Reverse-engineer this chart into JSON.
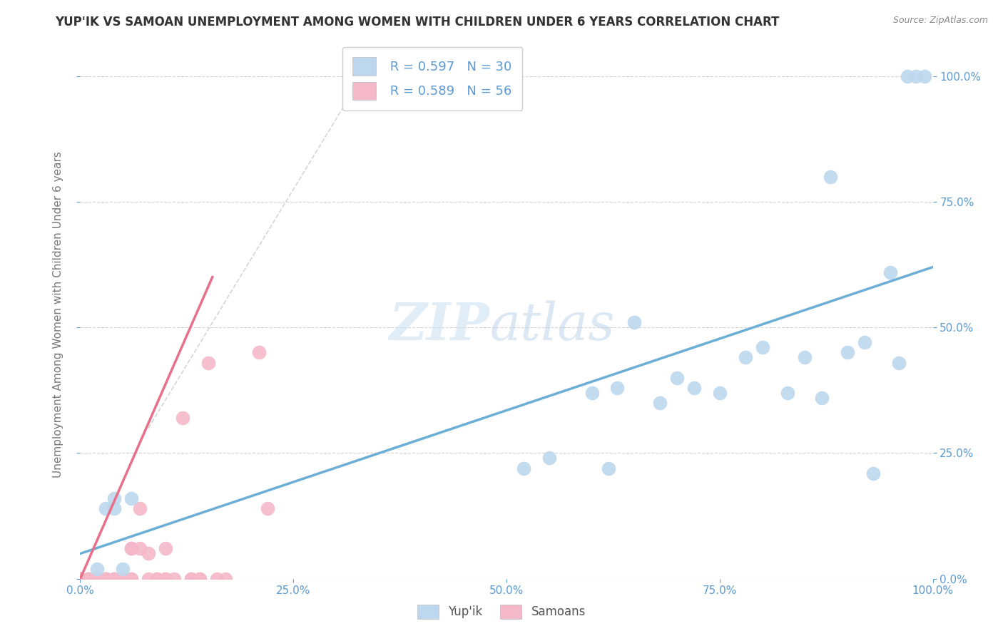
{
  "title": "YUP'IK VS SAMOAN UNEMPLOYMENT AMONG WOMEN WITH CHILDREN UNDER 6 YEARS CORRELATION CHART",
  "source": "Source: ZipAtlas.com",
  "ylabel": "Unemployment Among Women with Children Under 6 years",
  "watermark_zip": "ZIP",
  "watermark_atlas": "atlas",
  "legend_r_blue": "R = 0.597",
  "legend_n_blue": "N = 30",
  "legend_r_pink": "R = 0.589",
  "legend_n_pink": "N = 56",
  "blue_x": [
    0.02,
    0.03,
    0.04,
    0.04,
    0.05,
    0.06,
    0.52,
    0.55,
    0.6,
    0.62,
    0.63,
    0.65,
    0.68,
    0.7,
    0.72,
    0.75,
    0.78,
    0.8,
    0.83,
    0.85,
    0.87,
    0.88,
    0.9,
    0.92,
    0.93,
    0.95,
    0.96,
    0.97,
    0.98,
    0.99
  ],
  "blue_y": [
    0.02,
    0.14,
    0.16,
    0.14,
    0.02,
    0.16,
    0.22,
    0.24,
    0.37,
    0.22,
    0.38,
    0.51,
    0.35,
    0.4,
    0.38,
    0.37,
    0.44,
    0.46,
    0.37,
    0.44,
    0.36,
    0.8,
    0.45,
    0.47,
    0.21,
    0.61,
    0.43,
    1.0,
    1.0,
    1.0
  ],
  "pink_x": [
    0.0,
    0.0,
    0.0,
    0.0,
    0.0,
    0.0,
    0.0,
    0.0,
    0.0,
    0.0,
    0.01,
    0.01,
    0.01,
    0.01,
    0.02,
    0.02,
    0.02,
    0.02,
    0.02,
    0.02,
    0.03,
    0.03,
    0.03,
    0.03,
    0.03,
    0.04,
    0.04,
    0.04,
    0.05,
    0.05,
    0.05,
    0.05,
    0.06,
    0.06,
    0.06,
    0.06,
    0.07,
    0.07,
    0.08,
    0.08,
    0.09,
    0.09,
    0.1,
    0.1,
    0.1,
    0.11,
    0.12,
    0.13,
    0.13,
    0.14,
    0.14,
    0.15,
    0.16,
    0.17,
    0.21,
    0.22
  ],
  "pink_y": [
    0.0,
    0.0,
    0.0,
    0.0,
    0.0,
    0.0,
    0.0,
    0.0,
    0.0,
    0.0,
    0.0,
    0.0,
    0.0,
    0.0,
    0.0,
    0.0,
    0.0,
    0.0,
    0.0,
    0.0,
    0.0,
    0.0,
    0.0,
    0.0,
    0.0,
    0.0,
    0.0,
    0.0,
    0.0,
    0.0,
    0.0,
    0.0,
    0.0,
    0.06,
    0.06,
    0.0,
    0.14,
    0.06,
    0.05,
    0.0,
    0.0,
    0.0,
    0.0,
    0.06,
    0.0,
    0.0,
    0.32,
    0.0,
    0.0,
    0.0,
    0.0,
    0.43,
    0.0,
    0.0,
    0.45,
    0.14
  ],
  "blue_line_x0": 0.0,
  "blue_line_y0": 0.05,
  "blue_line_x1": 1.0,
  "blue_line_y1": 0.62,
  "pink_line_x0": 0.0,
  "pink_line_y0": 0.0,
  "pink_line_x1": 0.155,
  "pink_line_y1": 0.6,
  "xlim": [
    0.0,
    1.0
  ],
  "ylim": [
    0.0,
    1.05
  ],
  "xticks": [
    0.0,
    0.25,
    0.5,
    0.75,
    1.0
  ],
  "yticks": [
    0.0,
    0.25,
    0.5,
    0.75,
    1.0
  ],
  "blue_color": "#6baed6",
  "blue_scatter_color": "#bdd7ee",
  "pink_color": "#e8708a",
  "pink_scatter_color": "#f4b8c8",
  "grid_color": "#c8c8c8",
  "background_color": "#ffffff",
  "title_color": "#333333",
  "source_color": "#888888",
  "tick_color": "#5b9bd5",
  "ylabel_color": "#777777"
}
